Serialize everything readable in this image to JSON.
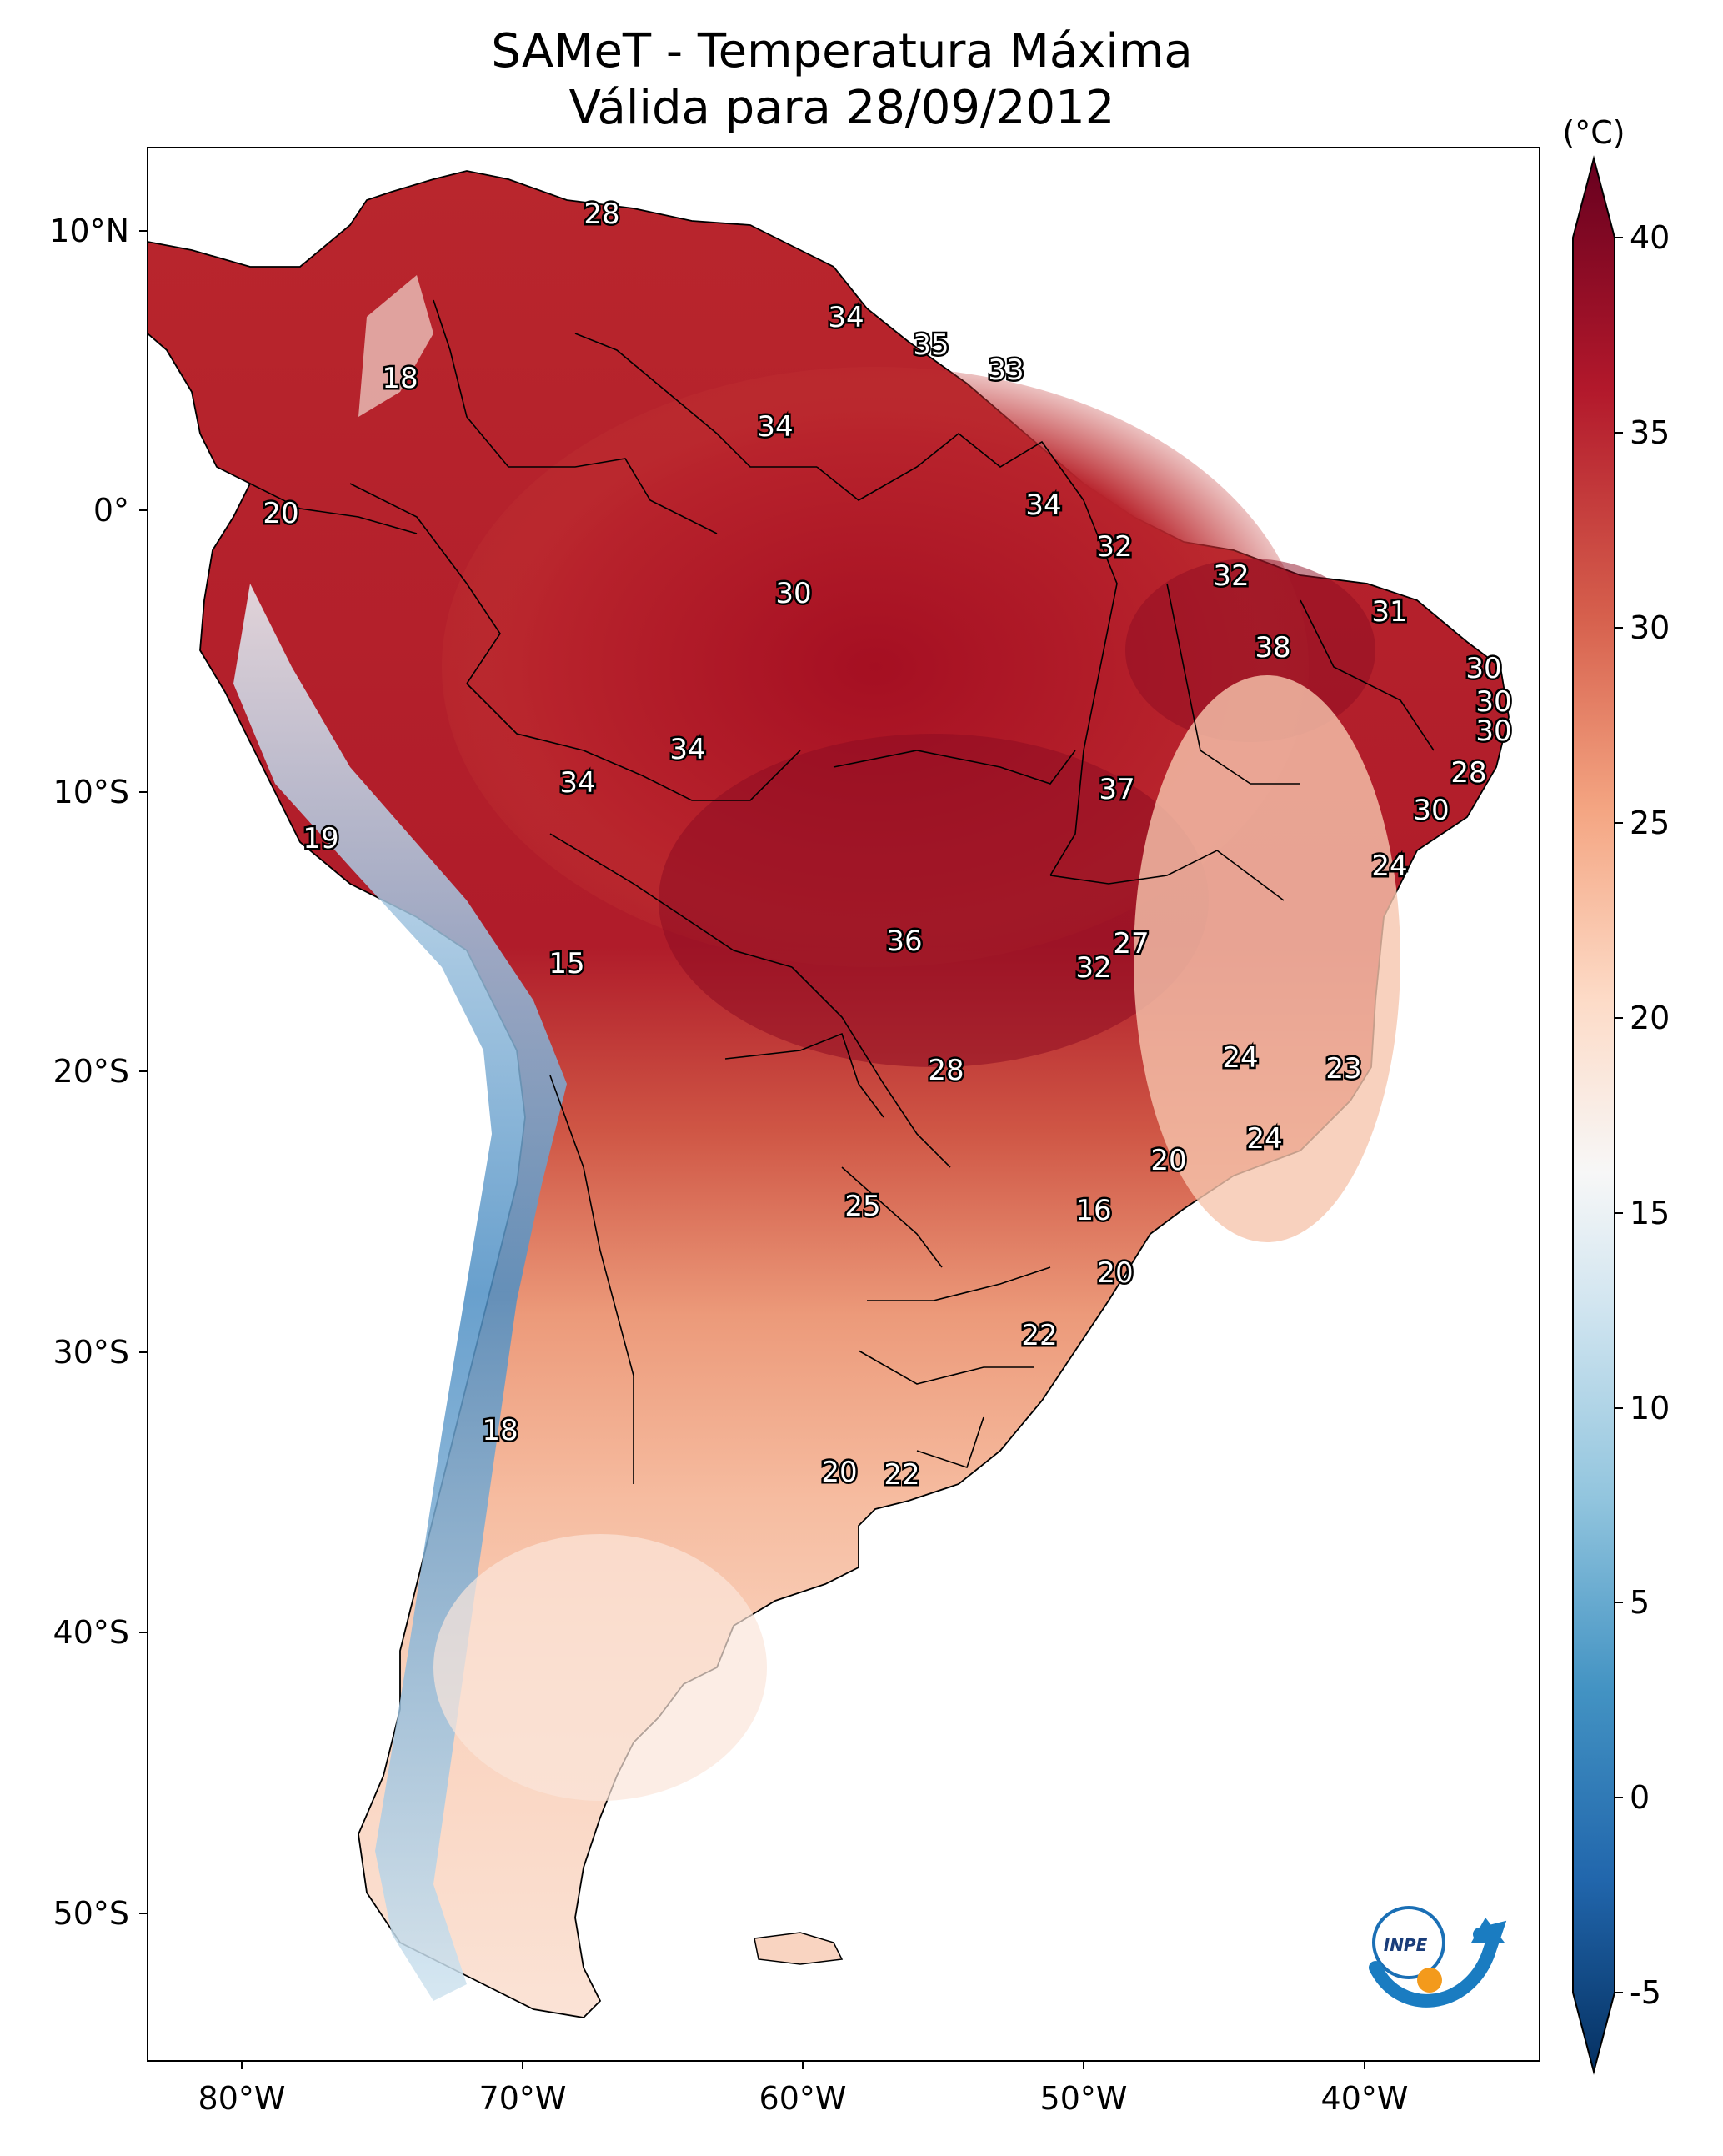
{
  "title": {
    "line1": "SAMeT - Temperatura Máxima",
    "line2": "Válida para 28/09/2012"
  },
  "axes": {
    "lat_ticks": [
      "10°N",
      "0°",
      "10°S",
      "20°S",
      "30°S",
      "40°S",
      "50°S"
    ],
    "lon_ticks": [
      "80°W",
      "70°W",
      "60°W",
      "50°W",
      "40°W"
    ]
  },
  "colorbar": {
    "unit": "(°C)",
    "ticks": [
      "40",
      "35",
      "30",
      "25",
      "20",
      "15",
      "10",
      "5",
      "0",
      "-5"
    ],
    "range": [
      -5,
      40
    ],
    "colors": [
      "#053061",
      "#2166ac",
      "#4393c3",
      "#92c5de",
      "#d1e5f0",
      "#f7f7f7",
      "#fddbc7",
      "#f4a582",
      "#d6604d",
      "#b2182b",
      "#67001f"
    ]
  },
  "contour_labels": [
    {
      "text": "28",
      "value": 28
    },
    {
      "text": "34",
      "value": 34
    },
    {
      "text": "35",
      "value": 35
    },
    {
      "text": "33",
      "value": 33
    },
    {
      "text": "18",
      "value": 18
    },
    {
      "text": "34",
      "value": 34
    },
    {
      "text": "20",
      "value": 20
    },
    {
      "text": "34",
      "value": 34
    },
    {
      "text": "32",
      "value": 32
    },
    {
      "text": "32",
      "value": 32
    },
    {
      "text": "30",
      "value": 30
    },
    {
      "text": "31",
      "value": 31
    },
    {
      "text": "38",
      "value": 38
    },
    {
      "text": "30",
      "value": 30
    },
    {
      "text": "30",
      "value": 30
    },
    {
      "text": "30",
      "value": 30
    },
    {
      "text": "34",
      "value": 34
    },
    {
      "text": "34",
      "value": 34
    },
    {
      "text": "37",
      "value": 37
    },
    {
      "text": "28",
      "value": 28
    },
    {
      "text": "30",
      "value": 30
    },
    {
      "text": "19",
      "value": 19
    },
    {
      "text": "24",
      "value": 24
    },
    {
      "text": "27",
      "value": 27
    },
    {
      "text": "36",
      "value": 36
    },
    {
      "text": "32",
      "value": 32
    },
    {
      "text": "15",
      "value": 15
    },
    {
      "text": "24",
      "value": 24
    },
    {
      "text": "23",
      "value": 23
    },
    {
      "text": "28",
      "value": 28
    },
    {
      "text": "24",
      "value": 24
    },
    {
      "text": "20",
      "value": 20
    },
    {
      "text": "25",
      "value": 25
    },
    {
      "text": "16",
      "value": 16
    },
    {
      "text": "20",
      "value": 20
    },
    {
      "text": "22",
      "value": 22
    },
    {
      "text": "18",
      "value": 18
    },
    {
      "text": "20",
      "value": 20
    },
    {
      "text": "22",
      "value": 22
    }
  ],
  "logo": {
    "text": "INPE"
  }
}
